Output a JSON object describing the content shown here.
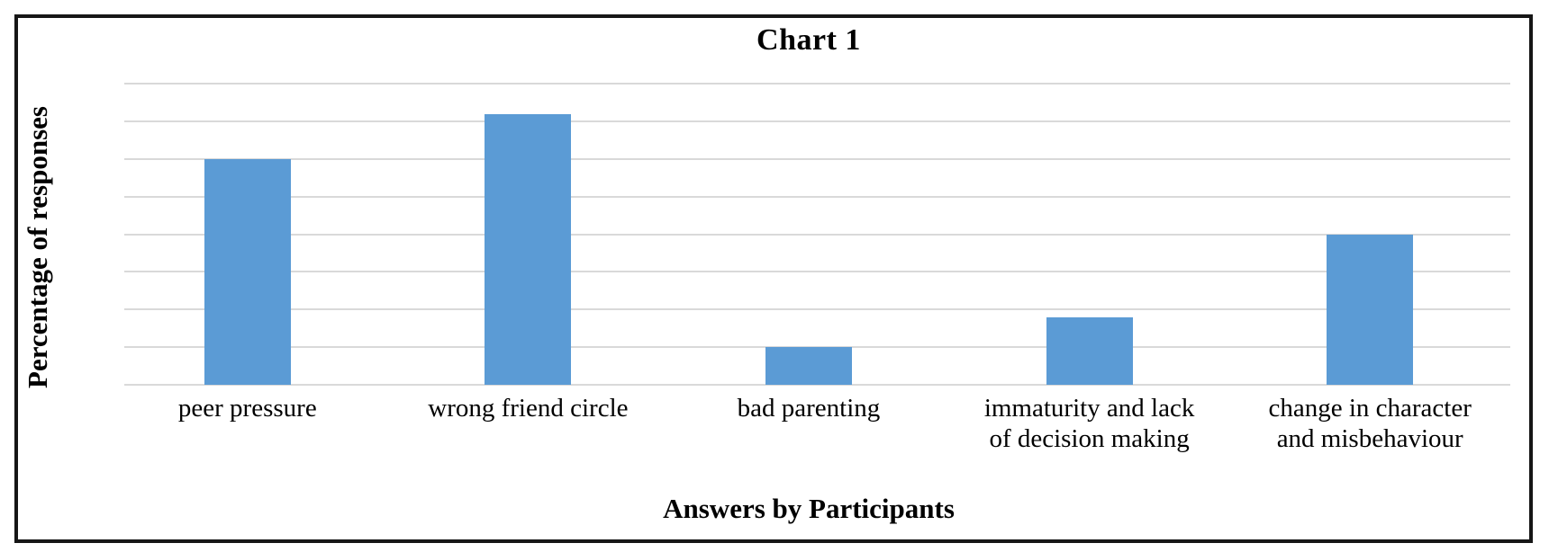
{
  "chart_data": {
    "type": "bar",
    "title": "Chart 1",
    "categories": [
      "peer pressure",
      "wrong friend circle",
      "bad parenting",
      "immaturity and lack\nof decision making",
      "change in character\nand misbehaviour"
    ],
    "values": [
      30,
      36,
      5,
      9,
      20
    ],
    "xlabel": "Answers by Participants",
    "ylabel": "Percentage of responses",
    "ylim": [
      0,
      40
    ],
    "ytick_step": 5,
    "ytick_labels": [
      "40",
      "35",
      "30",
      "25",
      "20",
      "15",
      "10",
      "5",
      "0"
    ],
    "grid": true,
    "legend": "none",
    "bar_color": "#5b9bd5",
    "gridline_color": "#d9d9d9",
    "border_color": "#161616",
    "background_color": "#ffffff",
    "text_color": "#000000"
  }
}
